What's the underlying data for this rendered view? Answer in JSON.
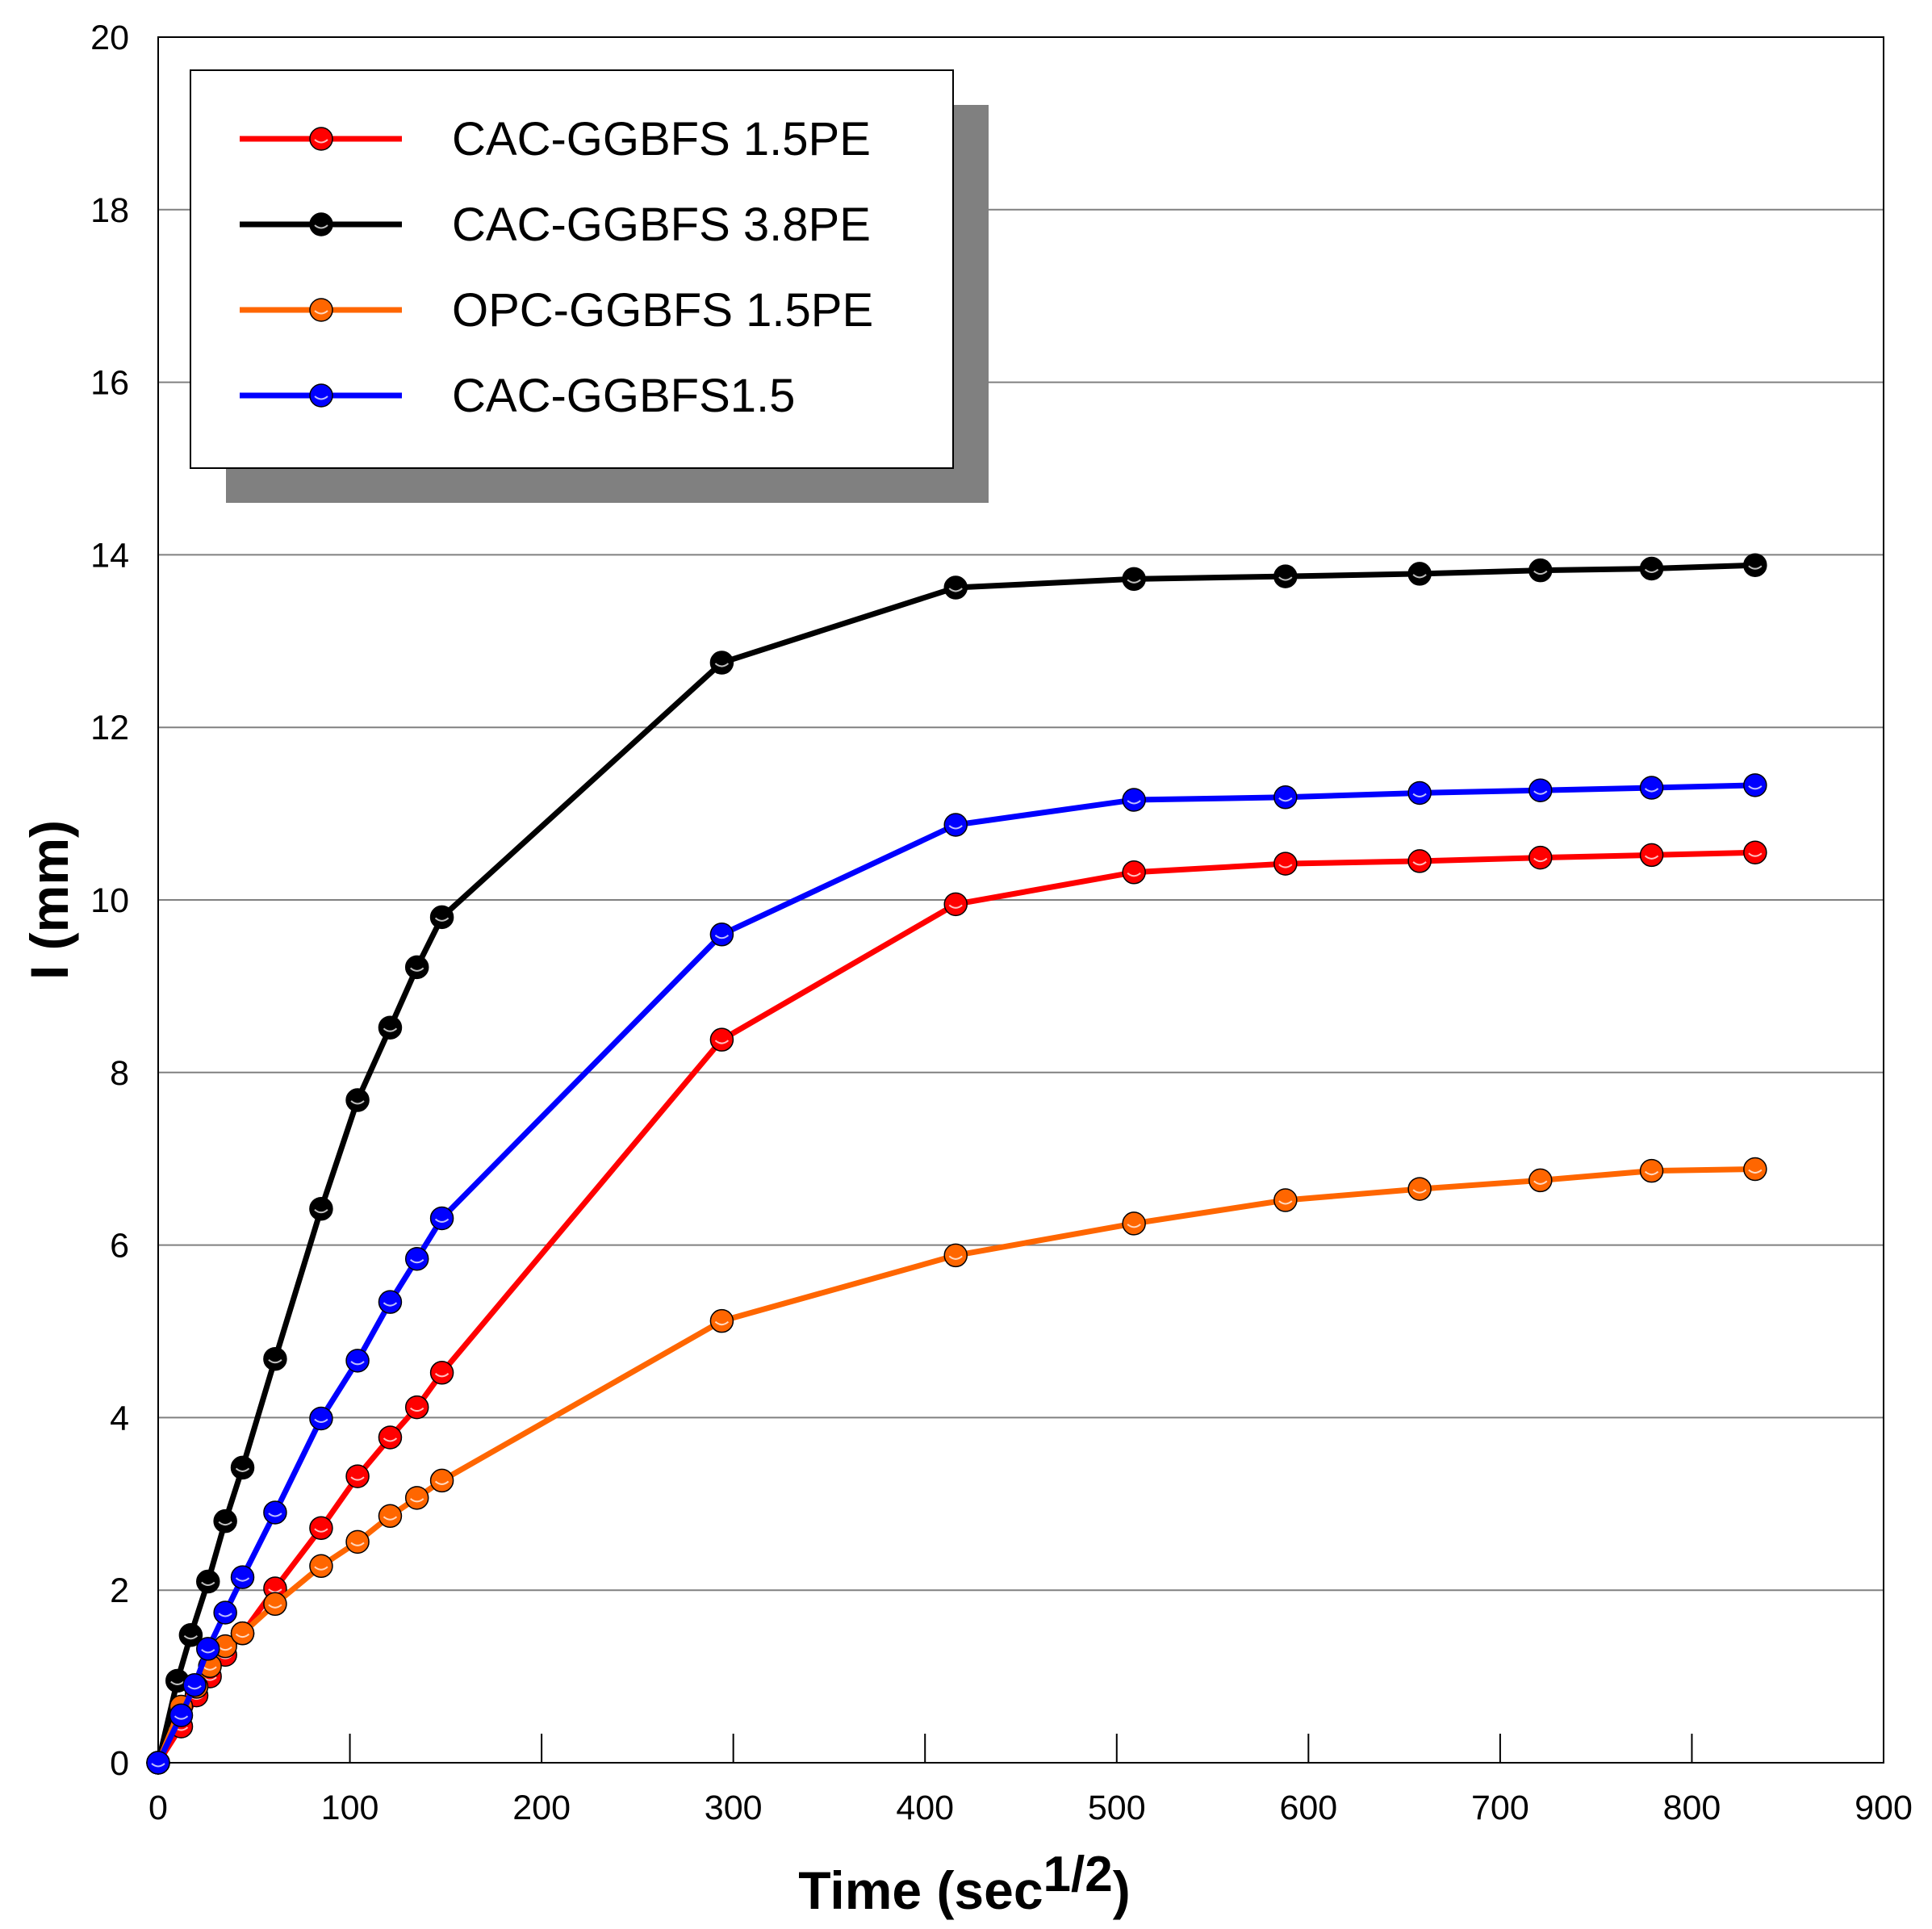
{
  "chart_data": {
    "type": "line",
    "xlabel": "Time (sec",
    "xlabel_superscript": "1/2",
    "xlabel_close": ")",
    "ylabel": "I (mm)",
    "xlim": [
      0,
      900
    ],
    "ylim": [
      0,
      20
    ],
    "xticks": [
      0,
      100,
      200,
      300,
      400,
      500,
      600,
      700,
      800,
      900
    ],
    "yticks": [
      0,
      2,
      4,
      6,
      8,
      10,
      12,
      14,
      16,
      18,
      20
    ],
    "grid": "horizontal",
    "legend_position": "top-left",
    "series": [
      {
        "name": "CAC-GGBFS 1.5PE",
        "color": "#ff0000",
        "x": [
          0,
          12,
          20,
          27,
          35,
          44,
          61,
          85,
          104,
          121,
          135,
          148,
          294,
          416,
          509,
          588,
          658,
          721,
          779,
          833
        ],
        "y": [
          0,
          0.42,
          0.78,
          1.0,
          1.25,
          1.5,
          2.02,
          2.72,
          3.32,
          3.77,
          4.12,
          4.52,
          8.38,
          9.95,
          10.32,
          10.42,
          10.45,
          10.49,
          10.52,
          10.55
        ]
      },
      {
        "name": "CAC-GGBFS 3.8PE",
        "color": "#000000",
        "x": [
          0,
          10,
          17,
          26,
          35,
          44,
          61,
          85,
          104,
          121,
          135,
          148,
          294,
          416,
          509,
          588,
          658,
          721,
          779,
          833
        ],
        "y": [
          0,
          0.95,
          1.48,
          2.1,
          2.8,
          3.42,
          4.68,
          6.42,
          7.68,
          8.52,
          9.22,
          9.8,
          12.75,
          13.62,
          13.72,
          13.75,
          13.78,
          13.82,
          13.84,
          13.88
        ]
      },
      {
        "name": "OPC-GGBFS 1.5PE",
        "color": "#ff6600",
        "x": [
          0,
          12,
          20,
          27,
          35,
          44,
          61,
          85,
          104,
          121,
          135,
          148,
          294,
          416,
          509,
          588,
          658,
          721,
          779,
          833
        ],
        "y": [
          0,
          0.65,
          0.88,
          1.12,
          1.35,
          1.5,
          1.84,
          2.28,
          2.56,
          2.86,
          3.07,
          3.27,
          5.12,
          5.88,
          6.25,
          6.52,
          6.65,
          6.75,
          6.86,
          6.88
        ]
      },
      {
        "name": "CAC-GGBFS1.5",
        "color": "#0000ff",
        "x": [
          0,
          12,
          19,
          26,
          35,
          44,
          61,
          85,
          104,
          121,
          135,
          148,
          294,
          416,
          509,
          588,
          658,
          721,
          779,
          833
        ],
        "y": [
          0,
          0.55,
          0.9,
          1.32,
          1.74,
          2.15,
          2.9,
          3.99,
          4.66,
          5.34,
          5.84,
          6.31,
          9.6,
          10.87,
          11.16,
          11.19,
          11.24,
          11.27,
          11.3,
          11.33
        ]
      }
    ]
  }
}
